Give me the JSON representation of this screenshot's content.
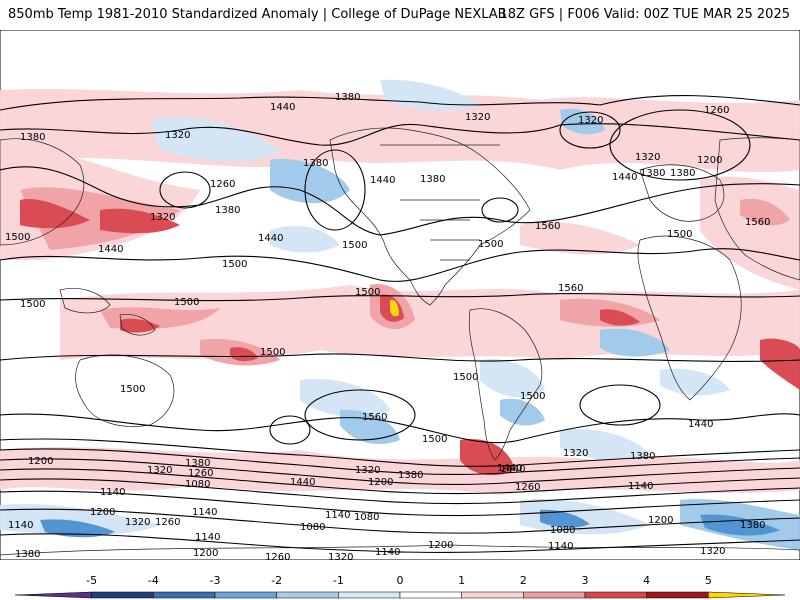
{
  "header": {
    "left_title": "850mb Temp 1981-2010 Standardized Anomaly | College of DuPage NEXLAB",
    "right_title": "18Z GFS | F006 Valid: 00Z TUE MAR 25 2025"
  },
  "map": {
    "projection": "global equirectangular",
    "field": "850mb temperature standardized anomaly (shaded) with geopotential height contours",
    "contour_labels": [
      "1380",
      "1440",
      "1320",
      "1380",
      "1260",
      "1380",
      "1320",
      "1440",
      "1500",
      "1440",
      "1500",
      "1380",
      "1440",
      "1380",
      "1320",
      "1320",
      "1200",
      "1260",
      "1380",
      "1320",
      "1380",
      "1440",
      "1500",
      "1560",
      "1500",
      "1560",
      "1500",
      "1560",
      "1500",
      "1500",
      "1500",
      "1500",
      "1500",
      "1500",
      "1440",
      "1560",
      "1500",
      "1500",
      "1380",
      "1440",
      "1320",
      "1260",
      "1200",
      "1140",
      "1320",
      "1380",
      "1200",
      "1140",
      "1140",
      "1080",
      "1380",
      "1320",
      "1260",
      "1440",
      "1260",
      "1200",
      "1140",
      "1320",
      "1380",
      "1440",
      "1140",
      "1080",
      "1200",
      "1140",
      "1080",
      "1140",
      "1080",
      "1200",
      "1260",
      "1320",
      "1380",
      "1200",
      "1140",
      "1320"
    ],
    "colors": {
      "contour": "#000000",
      "borders": "#222222",
      "land_fill": "#ffffff",
      "warm_light": "#fad4d6",
      "warm_mid": "#f0a0a4",
      "warm_strong": "#d9434b",
      "warm_max": "#ffd200",
      "cold_light": "#d2e5f5",
      "cold_mid": "#9cc8ea",
      "cold_strong": "#4a8fd0"
    }
  },
  "colorbar": {
    "ticks": [
      "-5",
      "-4",
      "-3",
      "-2",
      "-1",
      "0",
      "1",
      "2",
      "3",
      "4",
      "5"
    ],
    "colors": [
      "#5b2f8a",
      "#213f7a",
      "#3a6fb3",
      "#6fa6d8",
      "#a9cde8",
      "#d7e8f4",
      "#ffffff",
      "#f6d2d3",
      "#ec9ea0",
      "#d8474c",
      "#a1131d",
      "#ffd400"
    ]
  }
}
